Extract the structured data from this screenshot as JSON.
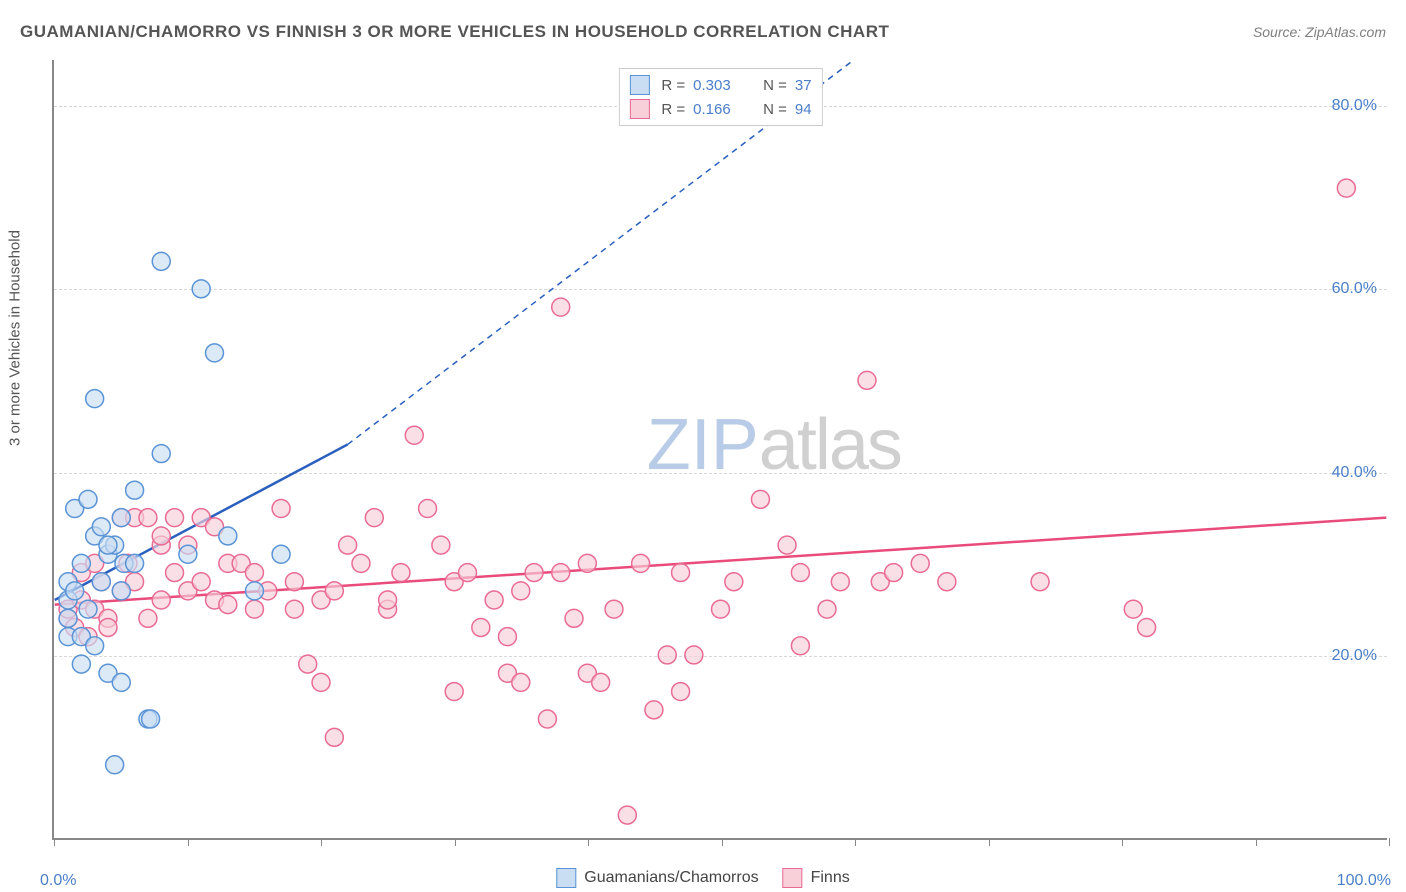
{
  "title": "GUAMANIAN/CHAMORRO VS FINNISH 3 OR MORE VEHICLES IN HOUSEHOLD CORRELATION CHART",
  "source": "Source: ZipAtlas.com",
  "yaxis_label": "3 or more Vehicles in Household",
  "watermark": {
    "part1": "ZIP",
    "part2": "atlas"
  },
  "chart": {
    "type": "scatter",
    "xlim": [
      0,
      100
    ],
    "ylim": [
      0,
      85
    ],
    "x_left_label": "0.0%",
    "x_right_label": "100.0%",
    "xticks": [
      0,
      10,
      20,
      30,
      40,
      50,
      60,
      70,
      80,
      90,
      100
    ],
    "yticks": [
      {
        "v": 20,
        "label": "20.0%"
      },
      {
        "v": 40,
        "label": "40.0%"
      },
      {
        "v": 60,
        "label": "60.0%"
      },
      {
        "v": 80,
        "label": "80.0%"
      }
    ],
    "grid_color": "#d8d8d8",
    "axis_color": "#888888",
    "background_color": "#ffffff",
    "marker_radius": 9,
    "marker_stroke_width": 1.5,
    "trend_line_width": 2.5,
    "series": [
      {
        "name": "Guamanians/Chamorros",
        "fill": "#c9ddf3",
        "stroke": "#5a94d6",
        "line_color": "#2a5fbf",
        "R": "0.303",
        "N": "37",
        "trend": {
          "x1": 0,
          "y1": 26,
          "x2": 22,
          "y2": 43,
          "dash_x2": 60,
          "dash_y2": 85
        },
        "points": [
          [
            1,
            22
          ],
          [
            1,
            24
          ],
          [
            1,
            26
          ],
          [
            1,
            28
          ],
          [
            1.5,
            27
          ],
          [
            1.5,
            36
          ],
          [
            2,
            22
          ],
          [
            2,
            19
          ],
          [
            2,
            30
          ],
          [
            2.5,
            25
          ],
          [
            2.5,
            37
          ],
          [
            3,
            33
          ],
          [
            3,
            48
          ],
          [
            3.5,
            34
          ],
          [
            3.5,
            28
          ],
          [
            4,
            18
          ],
          [
            4,
            31
          ],
          [
            4.5,
            32
          ],
          [
            5,
            35
          ],
          [
            5,
            27
          ],
          [
            5.2,
            30
          ],
          [
            6,
            30
          ],
          [
            4.5,
            8
          ],
          [
            5,
            17
          ],
          [
            6,
            38
          ],
          [
            7,
            13
          ],
          [
            7.2,
            13
          ],
          [
            8,
            42
          ],
          [
            8,
            63
          ],
          [
            10,
            31
          ],
          [
            11,
            60
          ],
          [
            12,
            53
          ],
          [
            13,
            33
          ],
          [
            15,
            27
          ],
          [
            17,
            31
          ],
          [
            4,
            32
          ],
          [
            3,
            21
          ]
        ]
      },
      {
        "name": "Finns",
        "fill": "#f7d0d9",
        "stroke": "#e96b94",
        "line_color": "#e94b7b",
        "R": "0.166",
        "N": "94",
        "trend": {
          "x1": 0,
          "y1": 25.5,
          "x2": 100,
          "y2": 35
        },
        "points": [
          [
            1,
            24
          ],
          [
            1,
            25
          ],
          [
            1.5,
            23
          ],
          [
            2,
            26
          ],
          [
            2,
            29
          ],
          [
            2.5,
            22
          ],
          [
            3,
            25
          ],
          [
            3,
            30
          ],
          [
            3.5,
            28
          ],
          [
            4,
            24
          ],
          [
            4,
            23
          ],
          [
            5,
            27
          ],
          [
            5,
            35
          ],
          [
            5.5,
            30
          ],
          [
            6,
            35
          ],
          [
            6,
            28
          ],
          [
            7,
            24
          ],
          [
            7,
            35
          ],
          [
            8,
            32
          ],
          [
            8,
            26
          ],
          [
            9,
            29
          ],
          [
            9,
            35
          ],
          [
            10,
            27
          ],
          [
            10,
            32
          ],
          [
            11,
            28
          ],
          [
            11,
            35
          ],
          [
            12,
            26
          ],
          [
            12,
            34
          ],
          [
            13,
            30
          ],
          [
            13,
            25.5
          ],
          [
            14,
            30
          ],
          [
            15,
            29
          ],
          [
            15,
            25
          ],
          [
            16,
            27
          ],
          [
            17,
            36
          ],
          [
            18,
            28
          ],
          [
            18,
            25
          ],
          [
            19,
            19
          ],
          [
            20,
            26
          ],
          [
            20,
            17
          ],
          [
            21,
            27
          ],
          [
            21,
            11
          ],
          [
            22,
            32
          ],
          [
            23,
            30
          ],
          [
            24,
            35
          ],
          [
            25,
            25
          ],
          [
            25,
            26
          ],
          [
            26,
            29
          ],
          [
            27,
            44
          ],
          [
            28,
            36
          ],
          [
            29,
            32
          ],
          [
            30,
            28
          ],
          [
            30,
            16
          ],
          [
            31,
            29
          ],
          [
            32,
            23
          ],
          [
            33,
            26
          ],
          [
            34,
            22
          ],
          [
            34,
            18
          ],
          [
            35,
            27
          ],
          [
            35,
            17
          ],
          [
            36,
            29
          ],
          [
            37,
            13
          ],
          [
            38,
            29
          ],
          [
            38,
            58
          ],
          [
            39,
            24
          ],
          [
            40,
            30
          ],
          [
            40,
            18
          ],
          [
            41,
            17
          ],
          [
            42,
            25
          ],
          [
            43,
            2.5
          ],
          [
            44,
            30
          ],
          [
            45,
            14
          ],
          [
            46,
            20
          ],
          [
            47,
            29
          ],
          [
            47,
            16
          ],
          [
            48,
            20
          ],
          [
            50,
            25
          ],
          [
            51,
            28
          ],
          [
            53,
            37
          ],
          [
            55,
            32
          ],
          [
            56,
            29
          ],
          [
            56,
            21
          ],
          [
            58,
            25
          ],
          [
            59,
            28
          ],
          [
            61,
            50
          ],
          [
            62,
            28
          ],
          [
            63,
            29
          ],
          [
            65,
            30
          ],
          [
            67,
            28
          ],
          [
            74,
            28
          ],
          [
            81,
            25
          ],
          [
            82,
            23
          ],
          [
            97,
            71
          ],
          [
            8,
            33
          ]
        ]
      }
    ]
  },
  "legend_top": {
    "rows": [
      {
        "swatch_fill": "#c9ddf3",
        "swatch_stroke": "#5a94d6",
        "R": "0.303",
        "N": "37"
      },
      {
        "swatch_fill": "#f7d0d9",
        "swatch_stroke": "#e96b94",
        "R": "0.166",
        "N": "94"
      }
    ]
  },
  "legend_bottom": {
    "items": [
      {
        "swatch_fill": "#c9ddf3",
        "swatch_stroke": "#5a94d6",
        "label": "Guamanians/Chamorros"
      },
      {
        "swatch_fill": "#f7d0d9",
        "swatch_stroke": "#e96b94",
        "label": "Finns"
      }
    ]
  }
}
